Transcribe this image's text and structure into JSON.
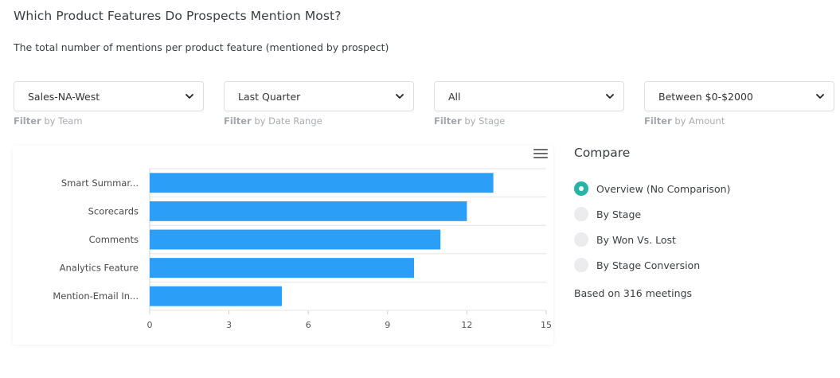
{
  "header": {
    "title": "Which Product Features Do Prospects Mention Most?",
    "subtitle": "The total number of mentions per product feature (mentioned by prospect)"
  },
  "filters": [
    {
      "value": "Sales-NA-West",
      "label_bold": "Filter",
      "label_rest": " by Team"
    },
    {
      "value": "Last Quarter",
      "label_bold": "Filter",
      "label_rest": " by Date Range"
    },
    {
      "value": "All",
      "label_bold": "Filter",
      "label_rest": " by Stage"
    },
    {
      "value": "Between $0-$2000",
      "label_bold": "Filter",
      "label_rest": " by Amount"
    }
  ],
  "chart_data": {
    "type": "bar",
    "orientation": "horizontal",
    "categories": [
      "Smart Summar...",
      "Scorecards",
      "Comments",
      "Analytics Feature",
      "Mention-Email In..."
    ],
    "values": [
      13,
      12,
      11,
      10,
      5
    ],
    "xlim": [
      0,
      15
    ],
    "xticks": [
      0,
      3,
      6,
      9,
      12,
      15
    ],
    "color": "#2b9ff7",
    "grid": true
  },
  "compare": {
    "title": "Compare",
    "options": [
      {
        "label": "Overview (No Comparison)",
        "checked": true
      },
      {
        "label": "By Stage",
        "checked": false
      },
      {
        "label": "By Won Vs. Lost",
        "checked": false
      },
      {
        "label": "By Stage Conversion",
        "checked": false
      }
    ],
    "based_on": "Based on 316 meetings"
  },
  "colors": {
    "accent": "#26b5a4",
    "bar": "#2b9ff7"
  },
  "icons": {
    "chart_menu": "hamburger-menu-icon",
    "select": "chevron-down-icon"
  }
}
